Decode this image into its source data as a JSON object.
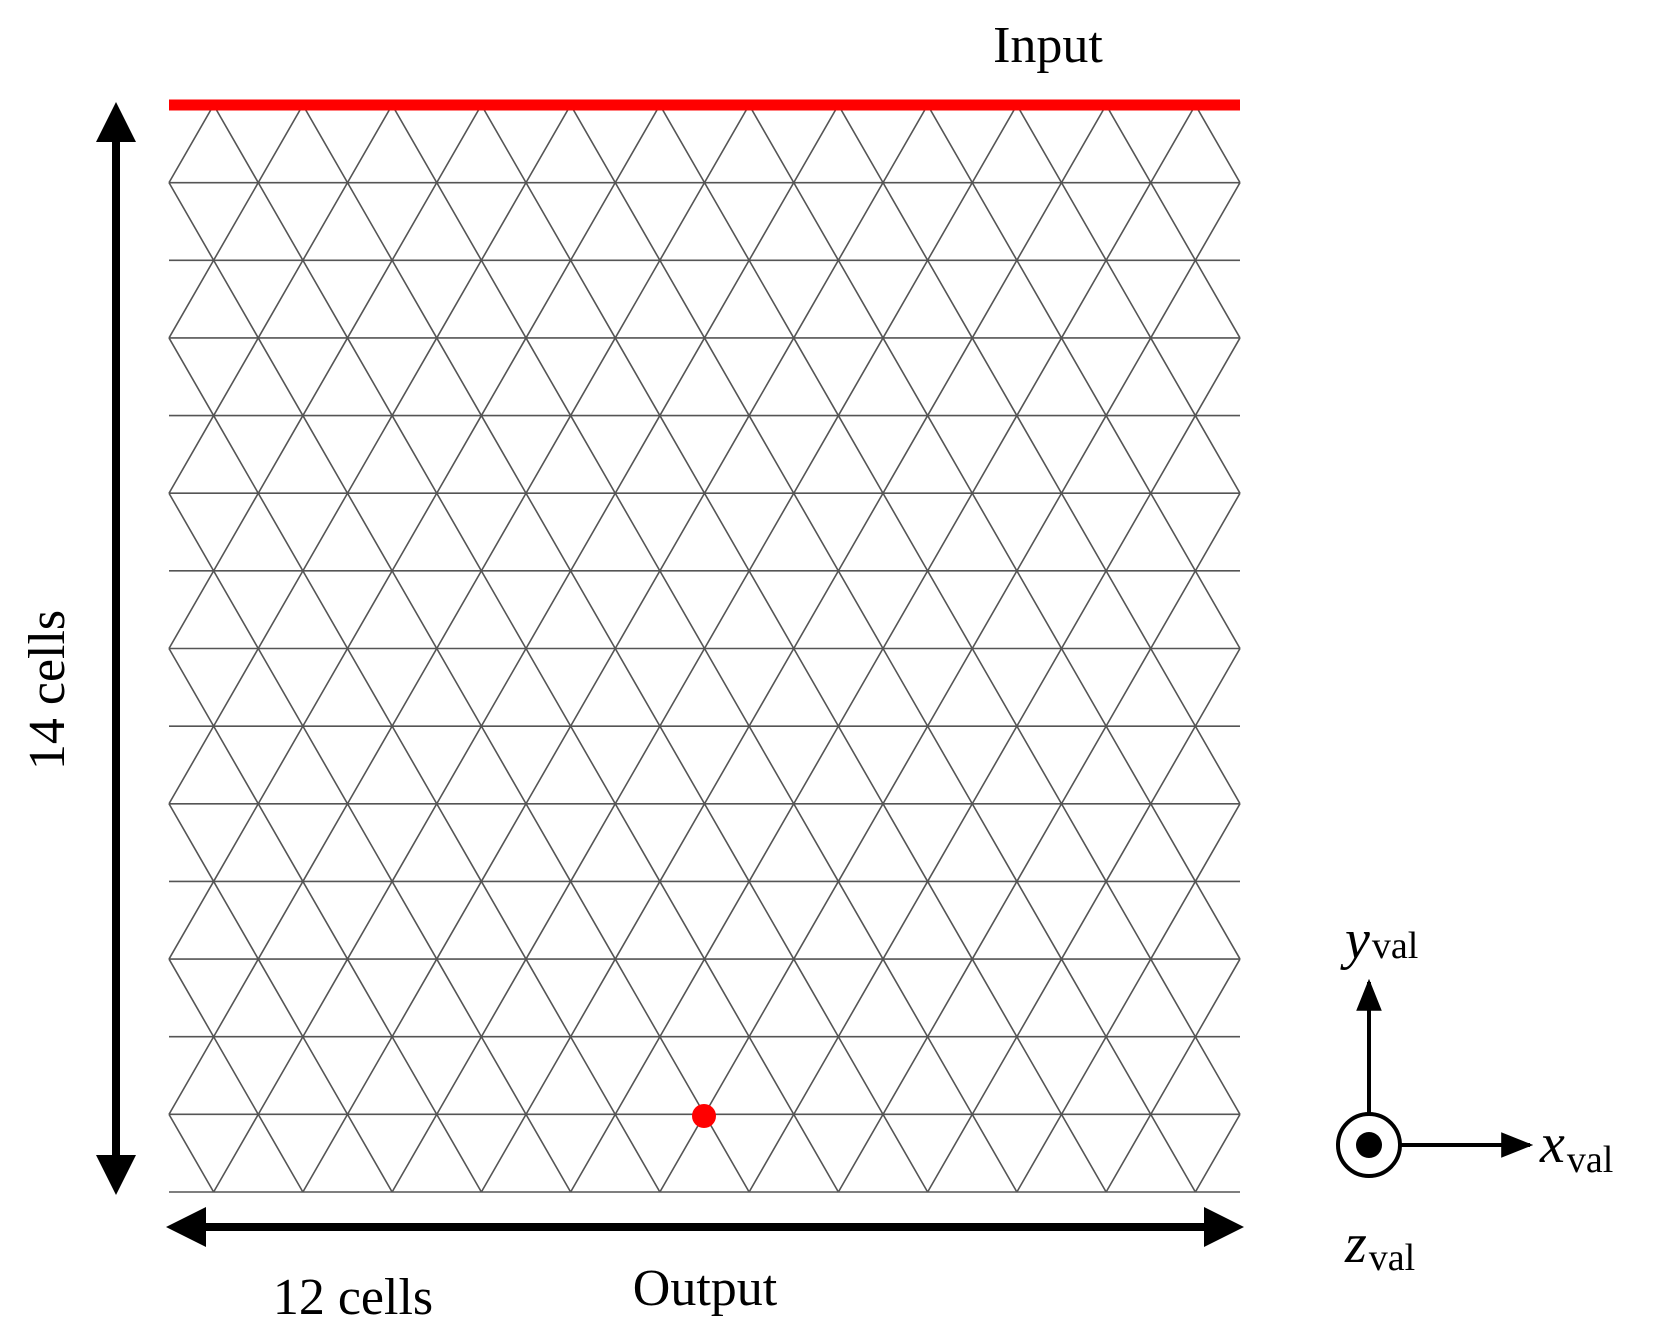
{
  "labels": {
    "input": "Input",
    "output": "Output",
    "width": "12 cells",
    "height": "14 cells"
  },
  "axes": {
    "x": {
      "symbol": "x",
      "subscript": "val"
    },
    "y": {
      "symbol": "y",
      "subscript": "val"
    },
    "z": {
      "symbol": "z",
      "subscript": "val"
    }
  }
}
